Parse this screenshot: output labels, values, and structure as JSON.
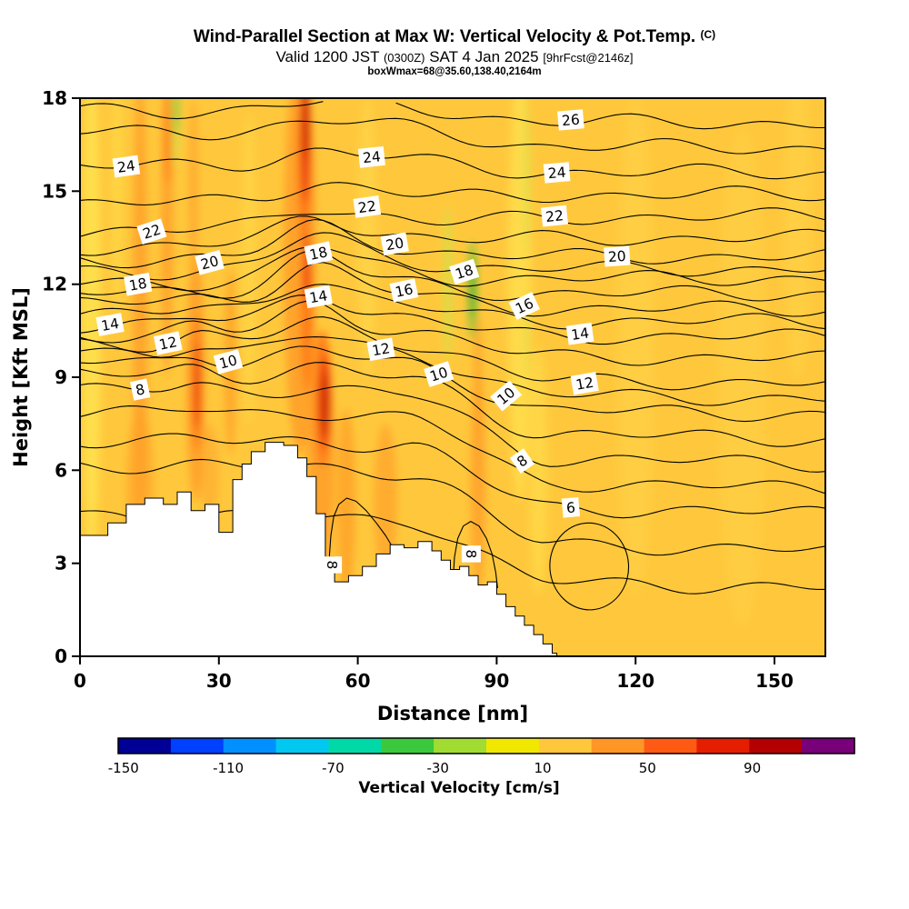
{
  "titles": {
    "main": "Wind-Parallel Section at Max W: Vertical Velocity & Pot.Temp.",
    "main_units": "(C)",
    "valid_prefix": "Valid 1200 JST",
    "valid_utc": "(0300Z)",
    "valid_date": "SAT 4 Jan 2025",
    "forecast_tag": "[9hrFcst@2146z]",
    "box_info": "boxWmax=68@35.60,138.40,2164m"
  },
  "chart_data": {
    "type": "heatmap",
    "title": "Wind-Parallel Section at Max W: Vertical Velocity & Pot.Temp. (C)",
    "xlabel": "Distance [nm]",
    "ylabel": "Height [Kft MSL]",
    "xlim": [
      0,
      161
    ],
    "ylim": [
      0,
      18
    ],
    "x_ticks": [
      0,
      30,
      60,
      90,
      120,
      150
    ],
    "y_ticks": [
      0,
      3,
      6,
      9,
      12,
      15,
      18
    ],
    "grid": false,
    "fill_description": "Filled contours of vertical velocity, mostly +10..+50 cm/s (gold/orange); updraft cores to ~90 cm/s (red) near x=48-53 nm and x=25 nm; weak downdrafts (green) near x=20 and x=85 nm; terrain shown as white silhouette below ~7 kft from x=0 to x=103 nm",
    "isentropes": {
      "label_units": "C",
      "levels": [
        {
          "v": 4,
          "left_kft": 4.6,
          "right_kft": 2.2
        },
        {
          "v": 5,
          "left_kft": 6.2,
          "right_kft": 3.4
        },
        {
          "v": 6,
          "left_kft": 7.0,
          "right_kft": 4.6
        },
        {
          "v": 7,
          "left_kft": 7.9,
          "right_kft": 5.4
        },
        {
          "v": 8,
          "left_kft": 8.6,
          "right_kft": 6.2
        },
        {
          "v": 9,
          "left_kft": 9.1,
          "right_kft": 7.0
        },
        {
          "v": 10,
          "left_kft": 9.5,
          "right_kft": 7.8
        },
        {
          "v": 11,
          "left_kft": 9.8,
          "right_kft": 8.3
        },
        {
          "v": 12,
          "left_kft": 10.1,
          "right_kft": 8.8
        },
        {
          "v": 13,
          "left_kft": 10.4,
          "right_kft": 9.6
        },
        {
          "v": 14,
          "left_kft": 10.7,
          "right_kft": 10.3
        },
        {
          "v": 15,
          "left_kft": 11.05,
          "right_kft": 10.8
        },
        {
          "v": 16,
          "left_kft": 11.4,
          "right_kft": 11.2
        },
        {
          "v": 17,
          "left_kft": 11.7,
          "right_kft": 11.7
        },
        {
          "v": 18,
          "left_kft": 12.0,
          "right_kft": 12.2
        },
        {
          "v": 19,
          "left_kft": 12.4,
          "right_kft": 12.5
        },
        {
          "v": 20,
          "left_kft": 12.8,
          "right_kft": 12.9
        },
        {
          "v": 21,
          "left_kft": 13.2,
          "right_kft": 13.5
        },
        {
          "v": 22,
          "left_kft": 13.7,
          "right_kft": 14.2
        },
        {
          "v": 23,
          "left_kft": 14.6,
          "right_kft": 14.9
        },
        {
          "v": 24,
          "left_kft": 15.8,
          "right_kft": 15.6
        },
        {
          "v": 25,
          "left_kft": 16.9,
          "right_kft": 16.4
        },
        {
          "v": 26,
          "left_kft": 17.6,
          "right_kft": 17.2
        }
      ],
      "labels": [
        {
          "v": 26,
          "x": 106,
          "h": 17.3,
          "rot": -5
        },
        {
          "v": 24,
          "x": 10,
          "h": 15.8,
          "rot": -8
        },
        {
          "v": 24,
          "x": 63,
          "h": 16.1,
          "rot": -6
        },
        {
          "v": 24,
          "x": 103,
          "h": 15.6,
          "rot": -5
        },
        {
          "v": 22,
          "x": 15.5,
          "h": 13.7,
          "rot": -18
        },
        {
          "v": 22,
          "x": 62,
          "h": 14.5,
          "rot": -8
        },
        {
          "v": 22,
          "x": 102.5,
          "h": 14.2,
          "rot": -6
        },
        {
          "v": 20,
          "x": 28,
          "h": 12.7,
          "rot": -15
        },
        {
          "v": 20,
          "x": 68,
          "h": 13.3,
          "rot": -10
        },
        {
          "v": 20,
          "x": 116,
          "h": 12.9,
          "rot": -4
        },
        {
          "v": 18,
          "x": 12.5,
          "h": 12.0,
          "rot": -10
        },
        {
          "v": 18,
          "x": 51.5,
          "h": 13.0,
          "rot": -12
        },
        {
          "v": 18,
          "x": 83,
          "h": 12.4,
          "rot": -18
        },
        {
          "v": 16,
          "x": 70,
          "h": 11.8,
          "rot": -12
        },
        {
          "v": 16,
          "x": 96,
          "h": 11.3,
          "rot": -25
        },
        {
          "v": 14,
          "x": 6.5,
          "h": 10.7,
          "rot": -10
        },
        {
          "v": 14,
          "x": 51.5,
          "h": 11.6,
          "rot": -10
        },
        {
          "v": 14,
          "x": 108,
          "h": 10.4,
          "rot": -8
        },
        {
          "v": 12,
          "x": 19,
          "h": 10.1,
          "rot": -12
        },
        {
          "v": 12,
          "x": 65,
          "h": 9.9,
          "rot": -10
        },
        {
          "v": 12,
          "x": 109,
          "h": 8.8,
          "rot": -10
        },
        {
          "v": 10,
          "x": 32,
          "h": 9.5,
          "rot": -15
        },
        {
          "v": 10,
          "x": 77.5,
          "h": 9.1,
          "rot": -18
        },
        {
          "v": 10,
          "x": 92,
          "h": 8.4,
          "rot": -40
        },
        {
          "v": 8,
          "x": 13,
          "h": 8.6,
          "rot": -12
        },
        {
          "v": 8,
          "x": 95.5,
          "h": 6.3,
          "rot": -35
        },
        {
          "v": 6,
          "x": 106,
          "h": 4.8,
          "rot": -5
        },
        {
          "v": 8,
          "x": 54.5,
          "h": 2.95,
          "rot": 90
        },
        {
          "v": 8,
          "x": 84.5,
          "h": 3.3,
          "rot": 90
        }
      ]
    },
    "terrain_kft": [
      [
        0,
        3.9
      ],
      [
        6,
        4.3
      ],
      [
        10,
        4.9
      ],
      [
        14,
        5.1
      ],
      [
        18,
        4.9
      ],
      [
        21,
        5.3
      ],
      [
        24,
        4.7
      ],
      [
        27,
        4.9
      ],
      [
        30,
        4.0
      ],
      [
        33,
        5.7
      ],
      [
        35,
        6.2
      ],
      [
        37,
        6.6
      ],
      [
        40,
        6.9
      ],
      [
        44,
        6.8
      ],
      [
        47,
        6.4
      ],
      [
        49,
        5.8
      ],
      [
        51,
        4.6
      ],
      [
        53,
        3.2
      ],
      [
        55,
        2.4
      ],
      [
        58,
        2.6
      ],
      [
        61,
        2.9
      ],
      [
        64,
        3.3
      ],
      [
        67,
        3.6
      ],
      [
        70,
        3.5
      ],
      [
        73,
        3.7
      ],
      [
        76,
        3.4
      ],
      [
        78,
        3.1
      ],
      [
        80,
        2.8
      ],
      [
        82,
        2.9
      ],
      [
        84,
        2.6
      ],
      [
        86,
        2.3
      ],
      [
        88,
        2.4
      ],
      [
        90,
        2.0
      ],
      [
        92,
        1.6
      ],
      [
        94,
        1.3
      ],
      [
        96,
        1.0
      ],
      [
        98,
        0.7
      ],
      [
        100,
        0.4
      ],
      [
        102,
        0.1
      ],
      [
        103,
        0
      ]
    ],
    "valley_contours": [
      {
        "v": 8,
        "points": [
          [
            53.8,
            2.6
          ],
          [
            53.9,
            3.3
          ],
          [
            54.2,
            3.9
          ],
          [
            54.8,
            4.5
          ],
          [
            55.9,
            4.9
          ],
          [
            57.6,
            5.1
          ],
          [
            59.6,
            5.0
          ],
          [
            61.8,
            4.7
          ],
          [
            64,
            4.3
          ],
          [
            66,
            3.9
          ],
          [
            67.6,
            3.5
          ],
          [
            68.6,
            3.1
          ]
        ]
      },
      {
        "v": 8,
        "points": [
          [
            80.6,
            2.5
          ],
          [
            80.9,
            3.2
          ],
          [
            81.6,
            3.8
          ],
          [
            82.8,
            4.2
          ],
          [
            84.4,
            4.35
          ],
          [
            86.2,
            4.2
          ],
          [
            87.8,
            3.8
          ],
          [
            89.0,
            3.3
          ],
          [
            89.8,
            2.7
          ],
          [
            90.2,
            2.2
          ]
        ]
      }
    ],
    "closed_contour": {
      "x": 110,
      "h": 2.9,
      "rx": 8.5,
      "ry": 1.4
    },
    "base_fill": "#FFC83C",
    "fill_blobs": [
      [
        2.5,
        11,
        2,
        8,
        "#FFE34F",
        0.85
      ],
      [
        8,
        15,
        1.2,
        4,
        "#FFDD4A",
        0.6
      ],
      [
        36.5,
        12.5,
        1.6,
        5,
        "#FFD94A",
        0.6
      ],
      [
        62,
        13.5,
        2,
        4.5,
        "#FFDB4D",
        0.5
      ],
      [
        95,
        12,
        2.5,
        7,
        "#FFE34F",
        0.7
      ],
      [
        99,
        6,
        2,
        4,
        "#FFE04D",
        0.6
      ],
      [
        120,
        10,
        4,
        8,
        "#FFD54A",
        0.45
      ],
      [
        143,
        9,
        5,
        8,
        "#FFD54A",
        0.4
      ],
      [
        155,
        14,
        3,
        5,
        "#FFD84C",
        0.4
      ],
      [
        20.5,
        17.2,
        0.9,
        1.4,
        "#CFE24A",
        0.8
      ],
      [
        79.5,
        12,
        1,
        2.5,
        "#CFE24A",
        0.7
      ],
      [
        96.5,
        15.5,
        0.8,
        2.5,
        "#D6E04A",
        0.55
      ],
      [
        96.5,
        10.5,
        0.6,
        1.5,
        "#D6E04A",
        0.5
      ],
      [
        84.8,
        11.8,
        0.9,
        1.6,
        "#74C43A",
        0.9
      ],
      [
        84.8,
        11.9,
        0.6,
        1.0,
        "#4FAF2D",
        0.9
      ],
      [
        20.8,
        17.6,
        0.5,
        0.8,
        "#74C43A",
        0.85
      ],
      [
        13,
        11,
        1.6,
        8,
        "#FFA028",
        0.85
      ],
      [
        18.8,
        14,
        1.3,
        5,
        "#FFA028",
        0.85
      ],
      [
        25,
        9,
        2,
        4,
        "#FFA028",
        0.9
      ],
      [
        24.5,
        15,
        1,
        3,
        "#FFA028",
        0.7
      ],
      [
        32.5,
        9.5,
        1.3,
        3,
        "#FFA028",
        0.8
      ],
      [
        47.5,
        13,
        3.5,
        6.5,
        "#FFA028",
        0.9
      ],
      [
        52,
        6.5,
        3,
        4,
        "#FFA028",
        0.9
      ],
      [
        57.5,
        5,
        2,
        3,
        "#FFA028",
        0.8
      ],
      [
        66,
        5,
        2.5,
        2.5,
        "#FFA028",
        0.7
      ],
      [
        86,
        5.5,
        1.6,
        3.5,
        "#FFA028",
        0.85
      ],
      [
        86,
        9,
        1,
        2,
        "#FFA028",
        0.7
      ],
      [
        13,
        5.5,
        3,
        2.5,
        "#FFA028",
        0.6
      ],
      [
        28,
        6,
        2,
        1.5,
        "#FFA028",
        0.5
      ],
      [
        48.5,
        16,
        1.4,
        2.8,
        "#FF7714",
        0.95
      ],
      [
        49,
        11,
        1.2,
        2.5,
        "#FF7714",
        0.9
      ],
      [
        52.5,
        8.3,
        1.8,
        2.2,
        "#FF7714",
        0.95
      ],
      [
        25.2,
        8.8,
        1,
        2.2,
        "#FF7714",
        0.9
      ],
      [
        19,
        16.8,
        0.7,
        1.6,
        "#FF7714",
        0.8
      ],
      [
        48.7,
        16.8,
        1.0,
        2.2,
        "#E8380D",
        0.95
      ],
      [
        52.8,
        8.2,
        1.2,
        1.5,
        "#E8380D",
        0.95
      ],
      [
        25.3,
        8.7,
        0.7,
        1.4,
        "#E8380D",
        0.85
      ],
      [
        48.9,
        12.5,
        0.8,
        1.2,
        "#E8380D",
        0.8
      ],
      [
        52.9,
        8.1,
        0.8,
        1.0,
        "#C81F00",
        0.95
      ],
      [
        48.8,
        17.3,
        0.7,
        1.3,
        "#C81F00",
        0.9
      ]
    ],
    "colorbar": {
      "title": "Vertical Velocity [cm/s]",
      "ticks": [
        -150,
        -110,
        -70,
        -30,
        10,
        50,
        90
      ],
      "colors": [
        "#000096",
        "#0040FF",
        "#0090FF",
        "#00C8F0",
        "#00D8A8",
        "#3CC83C",
        "#A0DC32",
        "#F0E800",
        "#FFC83C",
        "#FF9626",
        "#FF5A14",
        "#E61E00",
        "#B40000",
        "#780078"
      ]
    }
  }
}
